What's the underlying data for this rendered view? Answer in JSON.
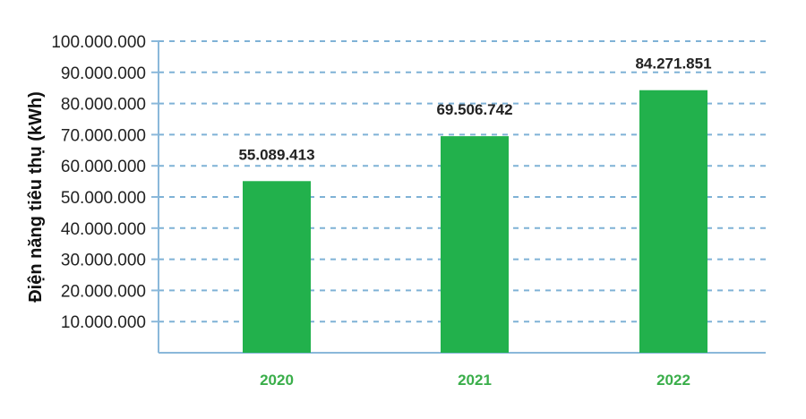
{
  "chart_data": {
    "type": "bar",
    "title": "",
    "xlabel": "",
    "ylabel": "Điện năng tiêu thụ (kWh)",
    "categories": [
      "2020",
      "2021",
      "2022"
    ],
    "values": [
      55089413,
      69506742,
      84271851
    ],
    "data_labels": [
      "55.089.413",
      "69.506.742",
      "84.271.851"
    ],
    "y_ticks": [
      10000000,
      20000000,
      30000000,
      40000000,
      50000000,
      60000000,
      70000000,
      80000000,
      90000000,
      100000000
    ],
    "y_tick_labels": [
      "10.000.000",
      "20.000.000",
      "30.000.000",
      "40.000.000",
      "50.000.000",
      "60.000.000",
      "70.000.000",
      "80.000.000",
      "90.000.000",
      "100.000.000"
    ],
    "ylim": [
      0,
      100000000
    ],
    "grid": true,
    "legend": "none",
    "colors": {
      "bar": "#22b14c",
      "category_label": "#3aae4a",
      "grid": "#7fb2d6",
      "axis": "#8ab8da"
    }
  }
}
